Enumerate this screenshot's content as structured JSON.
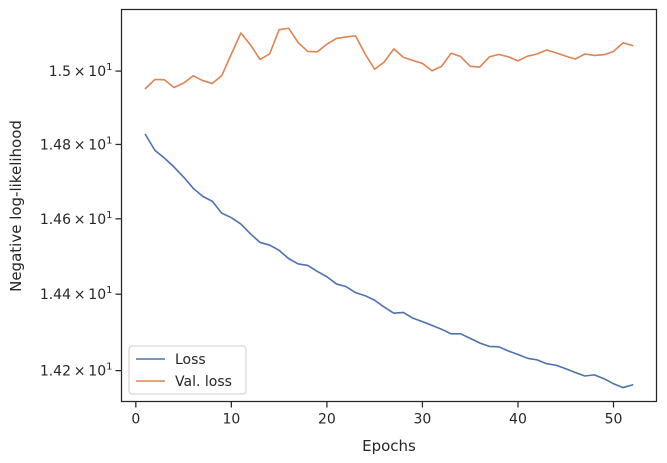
{
  "chart_data": {
    "type": "line",
    "xlabel": "Epochs",
    "ylabel": "Negative log-likelihood",
    "xlim": [
      -1.5,
      54.5
    ],
    "ylim": [
      14.12,
      15.17
    ],
    "y_scale": "log",
    "xticks": [
      0,
      10,
      20,
      30,
      40,
      50
    ],
    "yticks": [
      {
        "value": 14.2,
        "mantissa": "1.42",
        "times": "×",
        "base": "10",
        "exponent": "1"
      },
      {
        "value": 14.4,
        "mantissa": "1.44",
        "times": "×",
        "base": "10",
        "exponent": "1"
      },
      {
        "value": 14.6,
        "mantissa": "1.46",
        "times": "×",
        "base": "10",
        "exponent": "1"
      },
      {
        "value": 14.8,
        "mantissa": "1.48",
        "times": "×",
        "base": "10",
        "exponent": "1"
      },
      {
        "value": 15.0,
        "mantissa": "1.5",
        "times": "×",
        "base": "10",
        "exponent": "1"
      }
    ],
    "grid": false,
    "legend_position": "lower-left",
    "x": [
      1,
      2,
      3,
      4,
      5,
      6,
      7,
      8,
      9,
      10,
      11,
      12,
      13,
      14,
      15,
      16,
      17,
      18,
      19,
      20,
      21,
      22,
      23,
      24,
      25,
      26,
      27,
      28,
      29,
      30,
      31,
      32,
      33,
      34,
      35,
      36,
      37,
      38,
      39,
      40,
      41,
      42,
      43,
      44,
      45,
      46,
      47,
      48,
      49,
      50,
      51,
      52
    ],
    "series": [
      {
        "name": "Loss",
        "color": "#4c72b0",
        "values": [
          14.827,
          14.784,
          14.763,
          14.739,
          14.712,
          14.682,
          14.66,
          14.647,
          14.615,
          14.603,
          14.586,
          14.56,
          14.537,
          14.53,
          14.516,
          14.494,
          14.48,
          14.476,
          14.46,
          14.446,
          14.427,
          14.42,
          14.404,
          14.396,
          14.384,
          14.366,
          14.35,
          14.352,
          14.337,
          14.328,
          14.318,
          14.308,
          14.296,
          14.296,
          14.284,
          14.272,
          14.263,
          14.262,
          14.251,
          14.242,
          14.232,
          14.228,
          14.218,
          14.214,
          14.205,
          14.195,
          14.186,
          14.189,
          14.179,
          14.166,
          14.156,
          14.163
        ]
      },
      {
        "name": "Val. loss",
        "color": "#dd8452",
        "values": [
          14.952,
          14.977,
          14.976,
          14.955,
          14.967,
          14.987,
          14.974,
          14.966,
          14.988,
          15.047,
          15.105,
          15.072,
          15.032,
          15.047,
          15.114,
          15.118,
          15.078,
          15.054,
          15.053,
          15.074,
          15.09,
          15.094,
          15.097,
          15.047,
          15.005,
          15.025,
          15.061,
          15.038,
          15.029,
          15.021,
          15.001,
          15.013,
          15.049,
          15.04,
          15.013,
          15.011,
          15.039,
          15.046,
          15.039,
          15.028,
          15.041,
          15.047,
          15.058,
          15.05,
          15.041,
          15.033,
          15.047,
          15.043,
          15.045,
          15.054,
          15.078,
          15.07
        ]
      }
    ]
  }
}
